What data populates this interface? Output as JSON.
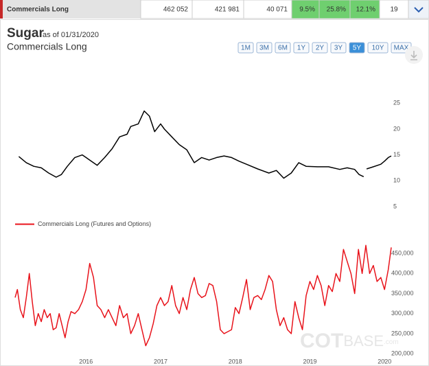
{
  "header": {
    "name": "Commercials Long",
    "cells": [
      "462 052",
      "421 981",
      "40 071",
      "9.5%",
      "25.8%",
      "12.1%",
      "19"
    ]
  },
  "title": "Sugar",
  "as_of": "as of 01/31/2020",
  "subtitle": "Commercials Long",
  "range_buttons": [
    "1M",
    "3M",
    "6M",
    "1Y",
    "2Y",
    "3Y",
    "5Y",
    "10Y",
    "MAX"
  ],
  "active_range_index": 6,
  "watermark": {
    "bold": "COT",
    "rest": "BASE",
    "suffix": ".com"
  },
  "chart_data": [
    {
      "type": "line",
      "x": [
        2015.1,
        2015.2,
        2015.3,
        2015.4,
        2015.5,
        2015.6,
        2015.67,
        2015.75,
        2015.85,
        2015.95,
        2016.05,
        2016.15,
        2016.25,
        2016.35,
        2016.45,
        2016.55,
        2016.6,
        2016.7,
        2016.78,
        2016.85,
        2016.92,
        2017.0,
        2017.05,
        2017.15,
        2017.25,
        2017.35,
        2017.45,
        2017.55,
        2017.65,
        2017.75,
        2017.85,
        2017.95,
        2018.05,
        2018.15,
        2018.3,
        2018.45,
        2018.55,
        2018.65,
        2018.75,
        2018.85,
        2018.95,
        2019.1,
        2019.25,
        2019.4,
        2019.5,
        2019.6,
        2019.66,
        2019.72,
        2019.74,
        2019.76,
        2019.85,
        2019.95,
        2020.0,
        2020.05,
        2020.09
      ],
      "series": [
        {
          "color": "#000000",
          "values": [
            14.7,
            13.5,
            12.8,
            12.5,
            11.5,
            10.7,
            11.2,
            12.8,
            14.5,
            15.0,
            14.0,
            13.0,
            14.5,
            16.2,
            18.5,
            19.0,
            20.5,
            21.0,
            23.5,
            22.5,
            19.5,
            21.0,
            20.0,
            18.5,
            17.0,
            16.0,
            13.5,
            14.5,
            14.0,
            14.5,
            14.8,
            14.5,
            13.8,
            13.2,
            12.3,
            11.5,
            12.0,
            10.5,
            11.5,
            13.5,
            12.8,
            12.7,
            12.7,
            12.2,
            12.5,
            12.2,
            11.2,
            10.8,
            null,
            12.3,
            12.7,
            13.2,
            13.8,
            14.5,
            14.8
          ]
        }
      ],
      "xlim": [
        2015.05,
        2020.09
      ],
      "ylim": [
        3,
        26.5
      ],
      "yticks": [
        5,
        10,
        15,
        20,
        25
      ]
    },
    {
      "type": "line",
      "x": [
        2015.05,
        2015.08,
        2015.12,
        2015.16,
        2015.2,
        2015.24,
        2015.28,
        2015.32,
        2015.36,
        2015.4,
        2015.44,
        2015.48,
        2015.52,
        2015.56,
        2015.6,
        2015.64,
        2015.68,
        2015.72,
        2015.76,
        2015.8,
        2015.85,
        2015.9,
        2015.95,
        2016.0,
        2016.05,
        2016.1,
        2016.15,
        2016.2,
        2016.25,
        2016.3,
        2016.35,
        2016.4,
        2016.45,
        2016.5,
        2016.55,
        2016.6,
        2016.65,
        2016.7,
        2016.75,
        2016.8,
        2016.85,
        2016.9,
        2016.95,
        2017.0,
        2017.05,
        2017.1,
        2017.15,
        2017.2,
        2017.25,
        2017.3,
        2017.35,
        2017.4,
        2017.45,
        2017.5,
        2017.55,
        2017.6,
        2017.65,
        2017.7,
        2017.75,
        2017.8,
        2017.85,
        2017.9,
        2017.95,
        2018.0,
        2018.05,
        2018.1,
        2018.15,
        2018.2,
        2018.25,
        2018.3,
        2018.35,
        2018.4,
        2018.45,
        2018.5,
        2018.55,
        2018.6,
        2018.65,
        2018.7,
        2018.75,
        2018.8,
        2018.85,
        2018.9,
        2018.95,
        2019.0,
        2019.05,
        2019.1,
        2019.15,
        2019.2,
        2019.25,
        2019.3,
        2019.35,
        2019.4,
        2019.45,
        2019.5,
        2019.55,
        2019.6,
        2019.65,
        2019.7,
        2019.75,
        2019.8,
        2019.85,
        2019.9,
        2019.95,
        2020.0,
        2020.05,
        2020.09
      ],
      "series": [
        {
          "name": "Commercials Long (Futures and Options)",
          "color": "#e8121a",
          "values": [
            340000,
            360000,
            310000,
            290000,
            340000,
            400000,
            330000,
            270000,
            300000,
            280000,
            310000,
            290000,
            300000,
            260000,
            265000,
            300000,
            270000,
            240000,
            280000,
            305000,
            300000,
            310000,
            330000,
            360000,
            425000,
            390000,
            320000,
            310000,
            290000,
            310000,
            290000,
            270000,
            320000,
            290000,
            300000,
            250000,
            270000,
            300000,
            260000,
            220000,
            240000,
            275000,
            320000,
            340000,
            320000,
            330000,
            370000,
            320000,
            300000,
            340000,
            310000,
            360000,
            390000,
            350000,
            340000,
            345000,
            375000,
            370000,
            330000,
            260000,
            250000,
            255000,
            260000,
            315000,
            300000,
            340000,
            385000,
            310000,
            340000,
            345000,
            335000,
            360000,
            395000,
            380000,
            310000,
            270000,
            290000,
            260000,
            250000,
            330000,
            290000,
            260000,
            345000,
            380000,
            360000,
            395000,
            370000,
            320000,
            370000,
            355000,
            400000,
            380000,
            460000,
            430000,
            400000,
            350000,
            460000,
            400000,
            470000,
            400000,
            420000,
            380000,
            390000,
            360000,
            410000,
            465000
          ]
        }
      ],
      "xlim": [
        2015.05,
        2020.09
      ],
      "ylim": [
        190000,
        480000
      ],
      "xticks": [
        2016,
        2017,
        2018,
        2019,
        2020
      ],
      "yticks": [
        {
          "value": 200000,
          "label": "200,000"
        },
        {
          "value": 250000,
          "label": "250,000"
        },
        {
          "value": 300000,
          "label": "300,000"
        },
        {
          "value": 350000,
          "label": "350,000"
        },
        {
          "value": 400000,
          "label": "400,000"
        },
        {
          "value": 450000,
          "label": "450,000"
        }
      ]
    }
  ]
}
